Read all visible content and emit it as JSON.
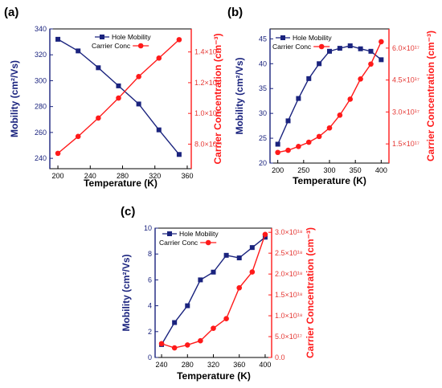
{
  "colors": {
    "mobility": "#1a237e",
    "carrier": "#ff1a1a",
    "axis": "#000000"
  },
  "chart_data": [
    {
      "panel": "(a)",
      "type": "line",
      "xlabel": "Temperature (K)",
      "ylabel_left": "Mobility (cm²/Vs)",
      "ylabel_right": "Carrier Concentration (cm⁻³)",
      "xlim": [
        190,
        365
      ],
      "xticks": [
        200,
        240,
        280,
        320,
        360
      ],
      "xtick_labels": [
        "200",
        "240",
        "280",
        "320",
        "360"
      ],
      "ylim_left": [
        232,
        340
      ],
      "yticks_left": [
        240,
        260,
        280,
        300,
        320,
        340
      ],
      "ytick_labels_left": [
        "240",
        "260",
        "280",
        "300",
        "320",
        "340"
      ],
      "ylim_right": [
        6.4e+16,
        1.55e+17
      ],
      "yticks_right": [
        8e+16,
        1e+17,
        1.2e+17,
        1.4e+17
      ],
      "ytick_labels_right": [
        "8.0×10¹⁶",
        "1.0×10¹⁷",
        "1.2×10¹⁷",
        "1.4×10¹⁷"
      ],
      "legend": "top-right",
      "series": [
        {
          "name": "Hole Mobility",
          "axis": "left",
          "marker": "square",
          "x": [
            200,
            225,
            250,
            275,
            300,
            325,
            350
          ],
          "values": [
            332,
            323,
            310,
            296,
            282,
            262,
            243
          ]
        },
        {
          "name": "Carrier Conc",
          "axis": "right",
          "marker": "circle",
          "x": [
            200,
            225,
            250,
            275,
            300,
            325,
            350
          ],
          "values": [
            7.4e+16,
            8.5e+16,
            9.7e+16,
            1.1e+17,
            1.24e+17,
            1.36e+17,
            1.48e+17
          ]
        }
      ]
    },
    {
      "panel": "(b)",
      "type": "line",
      "xlabel": "Temperature (K)",
      "ylabel_left": "Mobility (cm²/Vs)",
      "ylabel_right": "Carrier Concentration (cm⁻³)",
      "xlim": [
        185,
        415
      ],
      "xticks": [
        200,
        250,
        300,
        350,
        400
      ],
      "xtick_labels": [
        "200",
        "250",
        "300",
        "350",
        "400"
      ],
      "ylim_left": [
        20,
        47
      ],
      "yticks_left": [
        20,
        25,
        30,
        35,
        40,
        45
      ],
      "ytick_labels_left": [
        "20",
        "25",
        "30",
        "35",
        "40",
        "45"
      ],
      "ylim_right": [
        6e+16,
        6.9e+17
      ],
      "yticks_right": [
        1.5e+17,
        3e+17,
        4.5e+17,
        6e+17
      ],
      "ytick_labels_right": [
        "1.5×10¹⁷",
        "3.0×10¹⁷",
        "4.5×10¹⁷",
        "6.0×10¹⁷"
      ],
      "legend": "top-left",
      "series": [
        {
          "name": "Hole Mobility",
          "axis": "left",
          "marker": "square",
          "x": [
            200,
            220,
            240,
            260,
            280,
            300,
            320,
            340,
            360,
            380,
            400
          ],
          "values": [
            23.8,
            28.5,
            33,
            37,
            40,
            42.5,
            43.1,
            43.6,
            43,
            42.5,
            40.8
          ]
        },
        {
          "name": "Carrier Conc",
          "axis": "right",
          "marker": "circle",
          "x": [
            200,
            220,
            240,
            260,
            280,
            300,
            320,
            340,
            360,
            380,
            400
          ],
          "values": [
            1.1e+17,
            1.2e+17,
            1.38e+17,
            1.58e+17,
            1.85e+17,
            2.25e+17,
            2.85e+17,
            3.6e+17,
            4.55e+17,
            5.25e+17,
            6.3e+17
          ]
        }
      ]
    },
    {
      "panel": "(c)",
      "type": "line",
      "xlabel": "Temperature (K)",
      "ylabel_left": "Mobility (cm²/Vs)",
      "ylabel_right": "Carrier Concentration (cm⁻³)",
      "xlim": [
        230,
        410
      ],
      "xticks": [
        240,
        280,
        320,
        360,
        400
      ],
      "xtick_labels": [
        "240",
        "280",
        "320",
        "360",
        "400"
      ],
      "ylim_left": [
        0,
        10
      ],
      "yticks_left": [
        0,
        2,
        4,
        6,
        8,
        10
      ],
      "ytick_labels_left": [
        "0",
        "2",
        "4",
        "6",
        "8",
        "10"
      ],
      "ylim_right": [
        0,
        3.1e+18
      ],
      "yticks_right": [
        0,
        5e+17,
        1e+18,
        1.5e+18,
        2e+18,
        2.5e+18,
        3e+18
      ],
      "ytick_labels_right": [
        "0.0",
        "5.0×10¹⁷",
        "1.0×10¹⁸",
        "1.5×10¹⁸",
        "2.0×10¹⁸",
        "2.5×10¹⁸",
        "3.0×10¹⁸"
      ],
      "legend": "top-left",
      "series": [
        {
          "name": "Hole Mobility",
          "axis": "left",
          "marker": "square",
          "x": [
            240,
            260,
            280,
            300,
            320,
            340,
            360,
            380,
            400
          ],
          "values": [
            1.0,
            2.7,
            4.0,
            6.0,
            6.6,
            7.9,
            7.7,
            8.5,
            9.3
          ]
        },
        {
          "name": "Carrier Conc",
          "axis": "right",
          "marker": "circle",
          "x": [
            240,
            260,
            280,
            300,
            320,
            340,
            360,
            380,
            400
          ],
          "values": [
            3.3e+17,
            2.3e+17,
            3e+17,
            4e+17,
            7e+17,
            9.3e+17,
            1.67e+18,
            2.05e+18,
            2.95e+18
          ]
        }
      ]
    }
  ]
}
